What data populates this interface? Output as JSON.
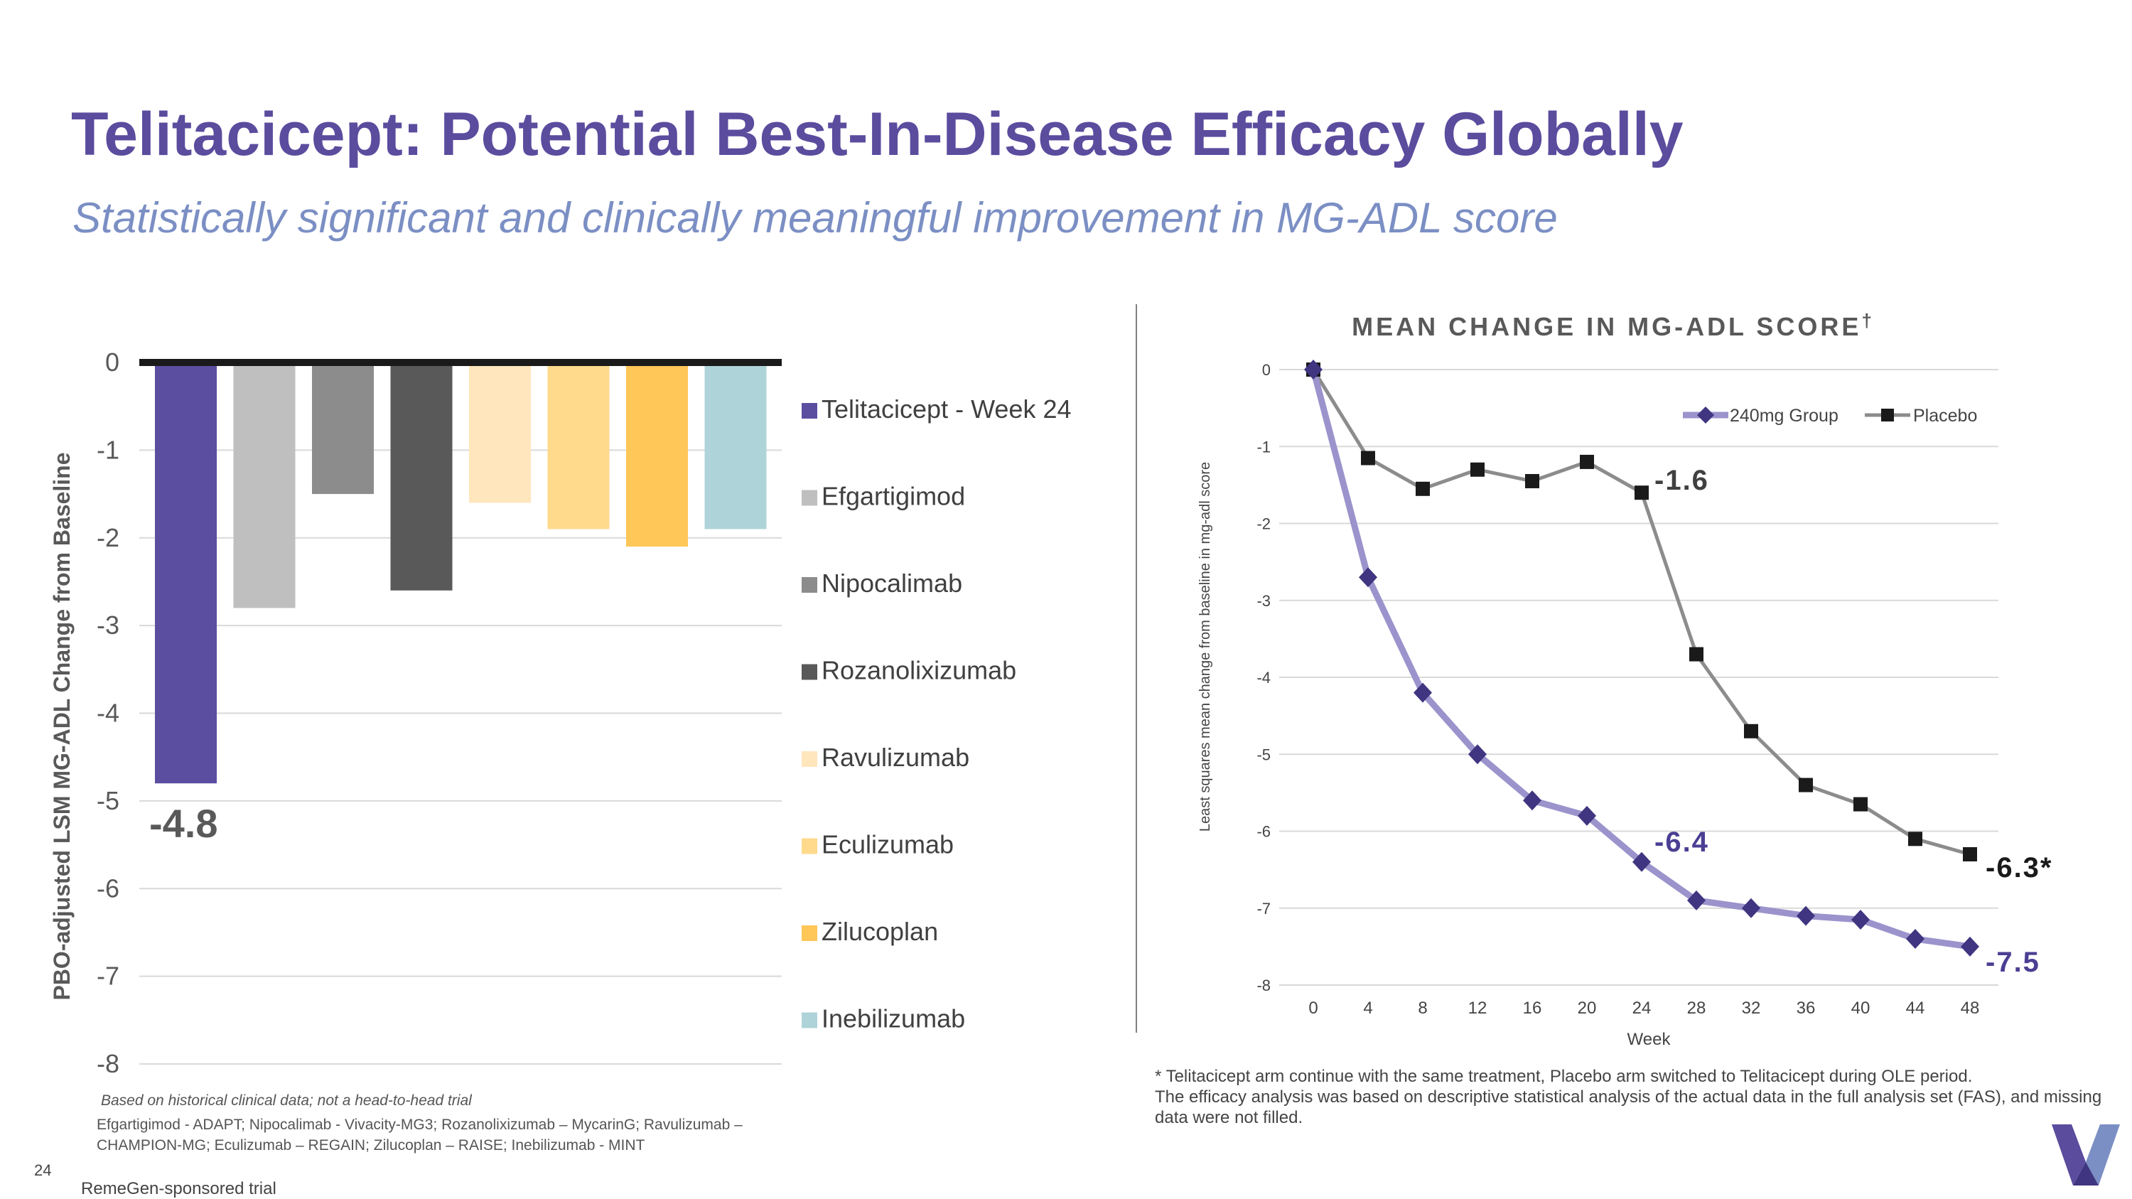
{
  "title": "Telitacicept: Potential Best-In-Disease Efficacy Globally",
  "subtitle": "Statistically significant and clinically meaningful improvement in MG-ADL score",
  "page_number": "24",
  "sponsored_note": "RemeGen-sponsored trial",
  "left_notes": {
    "italic": "Based on historical clinical data; not a head-to-head trial",
    "trials": "Efgartigimod - ADAPT; Nipocalimab - Vivacity-MG3; Rozanolixizumab – MycarinG; Ravulizumab – CHAMPION-MG; Eculizumab – REGAIN; Zilucoplan – RAISE; Inebilizumab - MINT"
  },
  "right_footnote": {
    "line1": "* Telitacicept arm continue with the same treatment, Placebo arm switched to Telitacicept during OLE period.",
    "line2": "The efficacy analysis was based on descriptive statistical analysis of the actual data in the full analysis set (FAS), and missing data were not filled."
  },
  "colors": {
    "title": "#5b4c9e",
    "subtitle": "#7b8fc4",
    "group_line": "#9b93cc",
    "group_marker": "#3f3580",
    "placebo_line": "#8c8c8c",
    "placebo_marker": "#1a1a1a"
  },
  "chart_data": [
    {
      "type": "bar",
      "title": "",
      "ylabel": "PBO-adjusted LSM MG-ADL Change from Baseline",
      "ylim": [
        -8,
        0
      ],
      "yticks": [
        "0",
        "-1",
        "-2",
        "-3",
        "-4",
        "-5",
        "-6",
        "-7",
        "-8"
      ],
      "series": [
        {
          "name": "Telitacicept - Week 24",
          "value": -4.8,
          "color": "#5b4ea1"
        },
        {
          "name": "Efgartigimod",
          "value": -2.8,
          "color": "#bfbfbf"
        },
        {
          "name": "Nipocalimab",
          "value": -1.5,
          "color": "#8c8c8c"
        },
        {
          "name": "Rozanolixizumab",
          "value": -2.6,
          "color": "#595959"
        },
        {
          "name": "Ravulizumab",
          "value": -1.6,
          "color": "#ffe6bc"
        },
        {
          "name": "Eculizumab",
          "value": -1.9,
          "color": "#ffd98c"
        },
        {
          "name": "Zilucoplan",
          "value": -2.1,
          "color": "#ffc658"
        },
        {
          "name": "Inebilizumab",
          "value": -1.9,
          "color": "#aed3d8"
        }
      ],
      "data_label": "-4.8",
      "legend": "right"
    },
    {
      "type": "line",
      "title": "MEAN CHANGE IN MG-ADL SCORE",
      "title_mark": "†",
      "xlabel": "Week",
      "ylabel": "Least squares mean change from baseline in mg-adl score",
      "x": [
        0,
        4,
        8,
        12,
        16,
        20,
        24,
        28,
        32,
        36,
        40,
        44,
        48
      ],
      "xlim": [
        0,
        48
      ],
      "ylim": [
        -8,
        0
      ],
      "yticks": [
        "0",
        "-1",
        "-2",
        "-3",
        "-4",
        "-5",
        "-6",
        "-7",
        "-8"
      ],
      "series": [
        {
          "name": "240mg Group",
          "values": [
            0,
            -2.7,
            -4.2,
            -5.0,
            -5.6,
            -5.8,
            -6.4,
            -6.9,
            -7.0,
            -7.1,
            -7.15,
            -7.4,
            -7.5
          ]
        },
        {
          "name": "Placebo",
          "values": [
            0,
            -1.15,
            -1.55,
            -1.3,
            -1.45,
            -1.2,
            -1.6,
            -3.7,
            -4.7,
            -5.4,
            -5.65,
            -6.1,
            -6.3
          ]
        }
      ],
      "annotations": [
        "-1.6",
        "-6.4",
        "-6.3*",
        "-7.5"
      ],
      "legend": "top-right"
    }
  ]
}
